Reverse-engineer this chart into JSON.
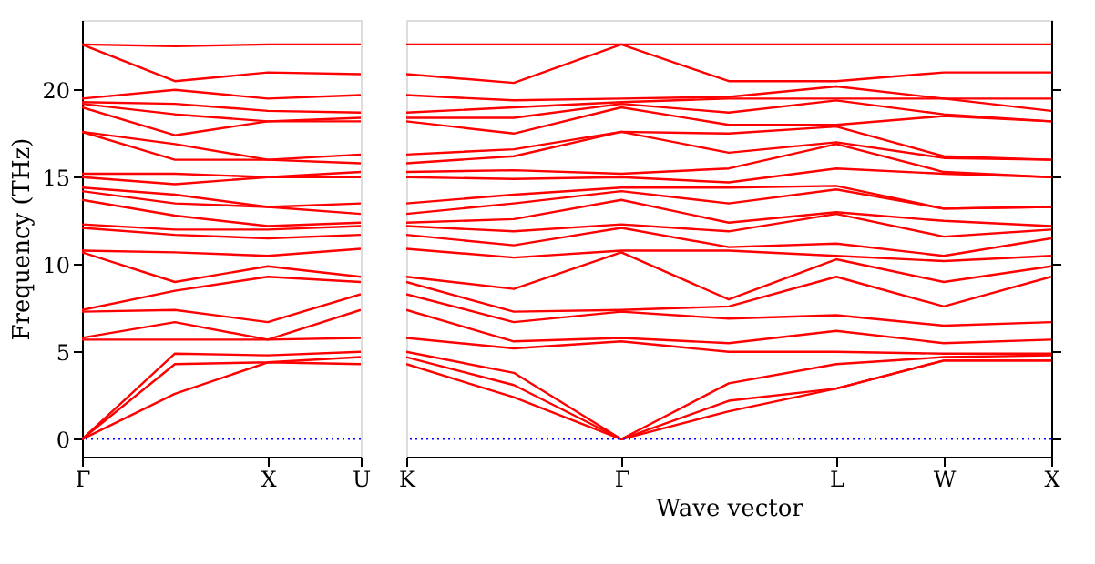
{
  "chart_data": [
    {
      "type": "line",
      "ylabel": "Frequency (THz)",
      "categories": [
        "Γ",
        null,
        "X",
        "U"
      ],
      "ylim": [
        -1,
        24
      ],
      "yticks": [
        0,
        5,
        10,
        15,
        20
      ],
      "grid": false,
      "marker": "none",
      "line_style": "solid",
      "ref_lines": [
        {
          "axis": "y",
          "value": 0,
          "color": "#0000ff",
          "line_style": "dotted"
        }
      ],
      "series": [
        {
          "color": "#ff0000",
          "values": [
            0,
            2.6,
            4.4,
            4.3
          ]
        },
        {
          "color": "#ff0000",
          "values": [
            0,
            4.3,
            4.4,
            4.7
          ]
        },
        {
          "color": "#ff0000",
          "values": [
            0,
            4.9,
            4.8,
            5.0
          ]
        },
        {
          "color": "#ff0000",
          "values": [
            5.7,
            5.7,
            5.7,
            5.8
          ]
        },
        {
          "color": "#ff0000",
          "values": [
            5.8,
            6.7,
            5.7,
            7.4
          ]
        },
        {
          "color": "#ff0000",
          "values": [
            7.3,
            7.4,
            6.7,
            8.3
          ]
        },
        {
          "color": "#ff0000",
          "values": [
            7.4,
            8.5,
            9.3,
            9.0
          ]
        },
        {
          "color": "#ff0000",
          "values": [
            10.7,
            9.0,
            9.9,
            9.3
          ]
        },
        {
          "color": "#ff0000",
          "values": [
            10.8,
            10.7,
            10.5,
            10.9
          ]
        },
        {
          "color": "#ff0000",
          "values": [
            12.1,
            11.7,
            11.5,
            11.7
          ]
        },
        {
          "color": "#ff0000",
          "values": [
            12.3,
            12.0,
            12.0,
            12.2
          ]
        },
        {
          "color": "#ff0000",
          "values": [
            13.7,
            12.8,
            12.2,
            12.4
          ]
        },
        {
          "color": "#ff0000",
          "values": [
            14.2,
            13.5,
            13.3,
            12.9
          ]
        },
        {
          "color": "#ff0000",
          "values": [
            14.4,
            14.0,
            13.3,
            13.5
          ]
        },
        {
          "color": "#ff0000",
          "values": [
            15.0,
            14.6,
            15.0,
            15.0
          ]
        },
        {
          "color": "#ff0000",
          "values": [
            15.2,
            15.2,
            15.0,
            15.3
          ]
        },
        {
          "color": "#ff0000",
          "values": [
            17.6,
            16.0,
            16.0,
            15.8
          ]
        },
        {
          "color": "#ff0000",
          "values": [
            17.6,
            16.9,
            16.0,
            16.3
          ]
        },
        {
          "color": "#ff0000",
          "values": [
            19.0,
            17.4,
            18.2,
            18.2
          ]
        },
        {
          "color": "#ff0000",
          "values": [
            19.2,
            18.6,
            18.2,
            18.4
          ]
        },
        {
          "color": "#ff0000",
          "values": [
            19.3,
            19.2,
            18.8,
            18.7
          ]
        },
        {
          "color": "#ff0000",
          "values": [
            19.5,
            20.0,
            19.5,
            19.7
          ]
        },
        {
          "color": "#ff0000",
          "values": [
            22.6,
            20.5,
            21.0,
            20.9
          ]
        },
        {
          "color": "#ff0000",
          "values": [
            22.6,
            22.5,
            22.6,
            22.6
          ]
        }
      ]
    },
    {
      "type": "line",
      "xlabel": "Wave vector",
      "categories": [
        "K",
        null,
        "Γ",
        null,
        "L",
        "W",
        "X"
      ],
      "ylim": [
        -1,
        24
      ],
      "yticks": [
        0,
        5,
        10,
        15,
        20
      ],
      "tick_labels": "x",
      "grid": false,
      "marker": "none",
      "line_style": "solid",
      "ref_lines": [
        {
          "axis": "y",
          "value": 0,
          "color": "#0000ff",
          "line_style": "dotted"
        }
      ],
      "series": [
        {
          "color": "#ff0000",
          "values": [
            4.3,
            2.4,
            0,
            1.6,
            2.9,
            4.5,
            4.5
          ]
        },
        {
          "color": "#ff0000",
          "values": [
            4.7,
            3.1,
            0,
            2.2,
            2.9,
            4.5,
            4.5
          ]
        },
        {
          "color": "#ff0000",
          "values": [
            5.0,
            3.8,
            0,
            3.2,
            4.3,
            4.7,
            4.8
          ]
        },
        {
          "color": "#ff0000",
          "values": [
            5.8,
            5.2,
            5.6,
            5.0,
            5.0,
            4.9,
            4.9
          ]
        },
        {
          "color": "#ff0000",
          "values": [
            7.4,
            5.6,
            5.8,
            5.5,
            6.2,
            5.5,
            5.7
          ]
        },
        {
          "color": "#ff0000",
          "values": [
            8.3,
            6.7,
            7.3,
            6.9,
            7.1,
            6.5,
            6.7
          ]
        },
        {
          "color": "#ff0000",
          "values": [
            9.0,
            7.3,
            7.4,
            7.6,
            9.3,
            7.6,
            9.3
          ]
        },
        {
          "color": "#ff0000",
          "values": [
            9.3,
            8.6,
            10.7,
            8.0,
            10.3,
            9.0,
            9.9
          ]
        },
        {
          "color": "#ff0000",
          "values": [
            10.9,
            10.4,
            10.8,
            10.8,
            10.5,
            10.2,
            10.5
          ]
        },
        {
          "color": "#ff0000",
          "values": [
            11.7,
            11.1,
            12.1,
            11.0,
            11.2,
            10.5,
            11.5
          ]
        },
        {
          "color": "#ff0000",
          "values": [
            12.2,
            11.9,
            12.3,
            11.9,
            12.9,
            11.6,
            12.0
          ]
        },
        {
          "color": "#ff0000",
          "values": [
            12.4,
            12.6,
            13.7,
            12.4,
            13.0,
            12.5,
            12.2
          ]
        },
        {
          "color": "#ff0000",
          "values": [
            12.9,
            13.5,
            14.2,
            13.5,
            14.3,
            13.2,
            13.3
          ]
        },
        {
          "color": "#ff0000",
          "values": [
            13.5,
            14.0,
            14.4,
            14.4,
            14.5,
            13.2,
            13.3
          ]
        },
        {
          "color": "#ff0000",
          "values": [
            15.0,
            14.9,
            15.0,
            14.7,
            15.5,
            15.2,
            15.0
          ]
        },
        {
          "color": "#ff0000",
          "values": [
            15.3,
            15.4,
            15.2,
            15.5,
            16.9,
            15.3,
            15.0
          ]
        },
        {
          "color": "#ff0000",
          "values": [
            15.8,
            16.2,
            17.6,
            16.4,
            17.0,
            16.1,
            16.0
          ]
        },
        {
          "color": "#ff0000",
          "values": [
            16.3,
            16.6,
            17.6,
            17.5,
            17.9,
            16.2,
            16.0
          ]
        },
        {
          "color": "#ff0000",
          "values": [
            18.2,
            17.5,
            19.0,
            18.0,
            18.0,
            18.5,
            18.2
          ]
        },
        {
          "color": "#ff0000",
          "values": [
            18.4,
            18.4,
            19.2,
            18.7,
            19.4,
            18.6,
            18.2
          ]
        },
        {
          "color": "#ff0000",
          "values": [
            18.7,
            19.0,
            19.3,
            19.5,
            19.5,
            19.5,
            18.8
          ]
        },
        {
          "color": "#ff0000",
          "values": [
            19.7,
            19.4,
            19.5,
            19.6,
            20.2,
            19.5,
            19.5
          ]
        },
        {
          "color": "#ff0000",
          "values": [
            20.9,
            20.4,
            22.6,
            20.5,
            20.5,
            21.0,
            21.0
          ]
        },
        {
          "color": "#ff0000",
          "values": [
            22.6,
            22.6,
            22.6,
            22.6,
            22.6,
            22.6,
            22.6
          ]
        }
      ]
    }
  ]
}
